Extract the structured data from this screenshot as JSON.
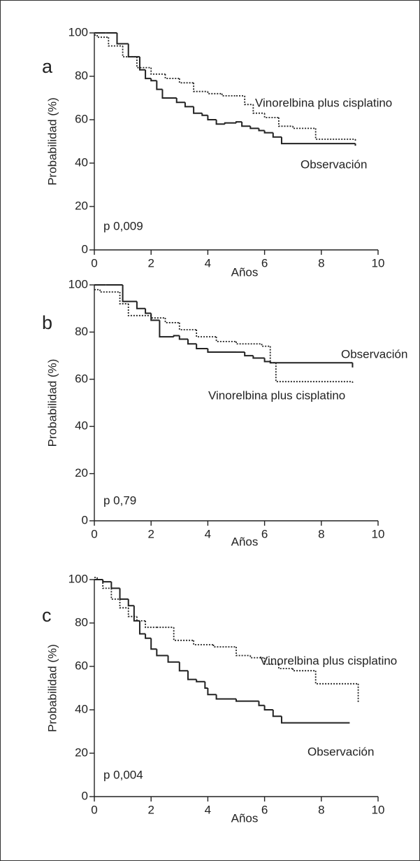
{
  "chart_data": [
    {
      "type": "line",
      "letter": "a",
      "annotation": "p 0,009",
      "xlabel": "Años",
      "ylabel": "Probabilidad (%)",
      "xlim": [
        0,
        10
      ],
      "ylim": [
        0,
        100
      ],
      "xticks": [
        0,
        2,
        4,
        6,
        8,
        10
      ],
      "yticks": [
        0,
        20,
        40,
        60,
        80,
        100
      ],
      "series": [
        {
          "name": "Observación",
          "color": "#222222",
          "line_style": "solid",
          "x": [
            0,
            0.4,
            0.8,
            1.2,
            1.6,
            1.8,
            2.0,
            2.2,
            2.4,
            2.9,
            3.2,
            3.5,
            3.8,
            4.0,
            4.3,
            4.6,
            5.0,
            5.2,
            5.5,
            5.8,
            6.0,
            6.3,
            6.6,
            9.2
          ],
          "values": [
            100,
            100,
            95,
            89,
            83,
            79,
            78,
            74,
            70,
            68,
            66,
            63,
            62,
            60,
            58,
            58.5,
            59,
            57,
            56,
            55,
            54,
            52,
            49,
            48
          ]
        },
        {
          "name": "Vinorelbina plus cisplatino",
          "color": "#222222",
          "line_style": "dotted",
          "x": [
            0,
            0.1,
            0.5,
            1.0,
            1.5,
            2.0,
            2.5,
            3.0,
            3.5,
            4.0,
            4.5,
            5.0,
            5.3,
            5.6,
            6.0,
            6.5,
            7.0,
            7.8,
            9.2
          ],
          "values": [
            99,
            98,
            94,
            89,
            84,
            81,
            79,
            77,
            73,
            72,
            71,
            71,
            67,
            63,
            61,
            57,
            56,
            51,
            50
          ]
        }
      ]
    },
    {
      "type": "line",
      "letter": "b",
      "annotation": "p 0,79",
      "xlabel": "Años",
      "ylabel": "Probabilidad (%)",
      "xlim": [
        0,
        10
      ],
      "ylim": [
        0,
        100
      ],
      "xticks": [
        0,
        2,
        4,
        6,
        8,
        10
      ],
      "yticks": [
        0,
        20,
        40,
        60,
        80,
        100
      ],
      "series": [
        {
          "name": "Observación",
          "color": "#222222",
          "line_style": "solid",
          "x": [
            0,
            0.4,
            1.0,
            1.5,
            1.8,
            2.0,
            2.3,
            2.8,
            3.0,
            3.3,
            3.6,
            4.0,
            5.0,
            5.3,
            5.6,
            6.0,
            6.2,
            9.1
          ],
          "values": [
            100,
            100,
            93,
            90,
            88,
            85,
            78,
            78.5,
            77,
            75,
            73,
            71.5,
            71.5,
            70,
            69,
            67.5,
            67,
            65
          ]
        },
        {
          "name": "Vinorelbina plus cisplatino",
          "color": "#222222",
          "line_style": "dotted",
          "x": [
            0,
            0.2,
            0.9,
            1.2,
            2.0,
            2.5,
            3.0,
            3.6,
            4.3,
            5.0,
            5.9,
            6.2,
            6.4,
            9.1
          ],
          "values": [
            98,
            97,
            92,
            87,
            86,
            84,
            81,
            78,
            76,
            75,
            74,
            67,
            59,
            58.5
          ]
        }
      ]
    },
    {
      "type": "line",
      "letter": "c",
      "annotation": "p 0,004",
      "xlabel": "Años",
      "ylabel": "Probabilidad (%)",
      "xlim": [
        0,
        10
      ],
      "ylim": [
        0,
        100
      ],
      "xticks": [
        0,
        2,
        4,
        6,
        8,
        10
      ],
      "yticks": [
        0,
        20,
        40,
        60,
        80,
        100
      ],
      "series": [
        {
          "name": "Observación",
          "color": "#222222",
          "line_style": "solid",
          "x": [
            0,
            0.3,
            0.6,
            0.9,
            1.2,
            1.4,
            1.6,
            1.8,
            2.0,
            2.2,
            2.6,
            3.0,
            3.3,
            3.6,
            3.9,
            4.0,
            4.3,
            5.0,
            5.8,
            6.0,
            6.3,
            6.6,
            9.0
          ],
          "values": [
            100,
            99,
            96,
            91,
            88,
            81,
            75,
            73,
            68,
            65,
            62,
            58,
            54,
            53,
            50,
            47,
            45,
            44,
            42,
            40,
            37,
            34,
            34
          ]
        },
        {
          "name": "Vinorelbina plus cisplatino",
          "color": "#222222",
          "line_style": "dotted",
          "x": [
            0,
            0.1,
            0.3,
            0.6,
            0.9,
            1.2,
            1.5,
            1.8,
            2.2,
            2.8,
            3.5,
            4.2,
            5.0,
            5.5,
            6.0,
            6.5,
            7.0,
            7.8,
            9.3
          ],
          "values": [
            101,
            100,
            96,
            91,
            87,
            83,
            81,
            78,
            78,
            72,
            70,
            69,
            65,
            64,
            61,
            59,
            58,
            52,
            43
          ]
        }
      ]
    }
  ]
}
